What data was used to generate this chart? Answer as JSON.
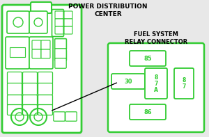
{
  "bg_color": "#e8e8e8",
  "green": "#33cc33",
  "title_pdc": "POWER DISTRIBUTION\nCENTER",
  "title_fuel": "FUEL SYSTEM\nRELAY CONNECTOR",
  "figsize": [
    3.0,
    1.97
  ],
  "dpi": 100
}
